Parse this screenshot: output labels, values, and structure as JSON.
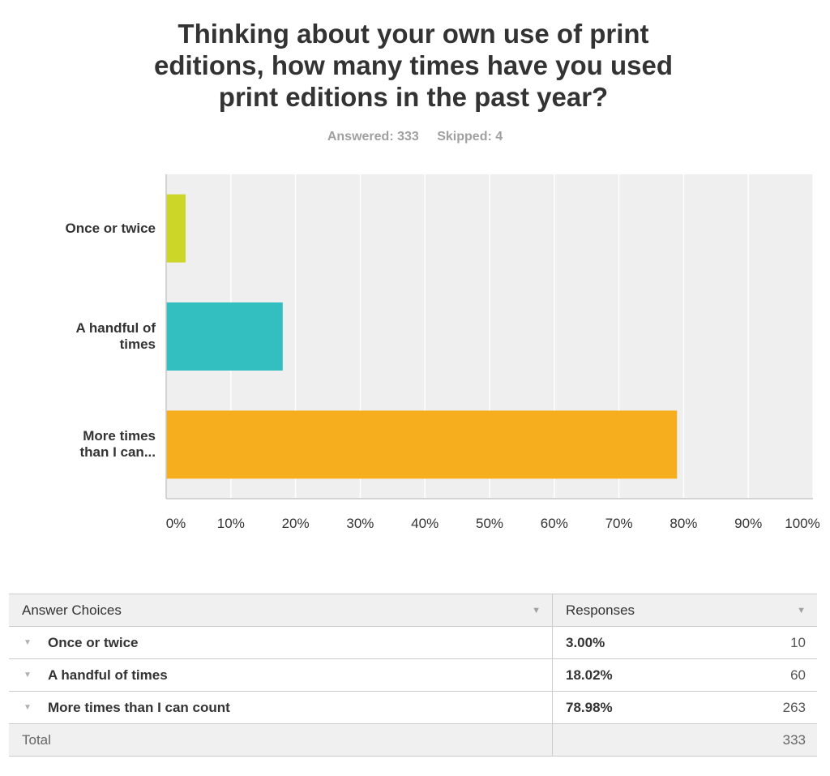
{
  "header": {
    "title": "Thinking about your own use of print editions, how many times have you used print editions in the past year?",
    "answered": "Answered: 333",
    "skipped": "Skipped: 4"
  },
  "chart_data": {
    "type": "bar",
    "orientation": "horizontal",
    "categories": [
      "Once or twice",
      "A handful of times",
      "More times than I can..."
    ],
    "category_labels": [
      "Once or twice",
      "A handful of\ntimes",
      "More times\nthan I can..."
    ],
    "values": [
      3.0,
      18.02,
      78.98
    ],
    "colors": [
      "#cbd628",
      "#33bec0",
      "#f6ae1f"
    ],
    "xlim": [
      0,
      100
    ],
    "x_ticks": [
      "0%",
      "10%",
      "20%",
      "30%",
      "40%",
      "50%",
      "60%",
      "70%",
      "80%",
      "90%",
      "100%"
    ],
    "grid": true,
    "plot_background": "#efefef"
  },
  "table": {
    "headers": [
      "Answer Choices",
      "Responses"
    ],
    "rows": [
      {
        "choice": "Once or twice",
        "percent": "3.00%",
        "count": "10"
      },
      {
        "choice": "A handful of times",
        "percent": "18.02%",
        "count": "60"
      },
      {
        "choice": "More times than I can count",
        "percent": "78.98%",
        "count": "263"
      }
    ],
    "total_label": "Total",
    "total_count": "333"
  }
}
